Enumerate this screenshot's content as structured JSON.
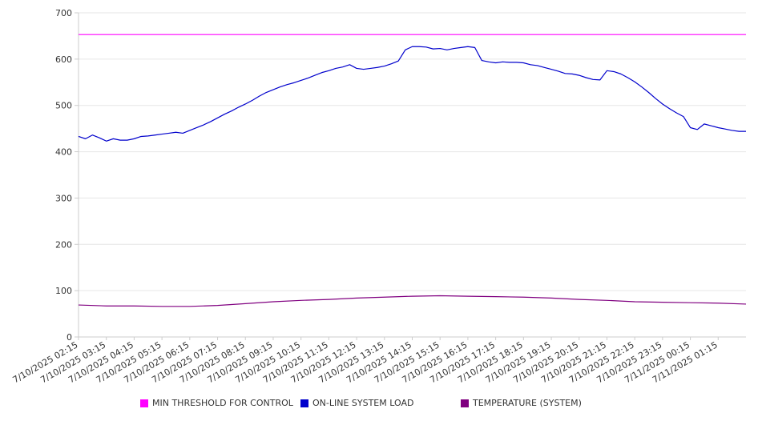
{
  "chart_data": {
    "type": "line",
    "title": "",
    "xlabel": "",
    "ylabel": "",
    "ylim": [
      0,
      700
    ],
    "yticks": [
      0,
      100,
      200,
      300,
      400,
      500,
      600,
      700
    ],
    "grid": "horizontal",
    "legend_position": "bottom",
    "x_tick_labels": [
      "7/10/2025 02:15",
      "7/10/2025 03:15",
      "7/10/2025 04:15",
      "7/10/2025 05:15",
      "7/10/2025 06:15",
      "7/10/2025 07:15",
      "7/10/2025 08:15",
      "7/10/2025 09:15",
      "7/10/2025 10:15",
      "7/10/2025 11:15",
      "7/10/2025 12:15",
      "7/10/2025 13:15",
      "7/10/2025 14:15",
      "7/10/2025 15:15",
      "7/10/2025 16:15",
      "7/10/2025 17:15",
      "7/10/2025 18:15",
      "7/10/2025 19:15",
      "7/10/2025 20:15",
      "7/10/2025 21:15",
      "7/10/2025 22:15",
      "7/10/2025 23:15",
      "7/11/2025 00:15",
      "7/11/2025 01:15"
    ],
    "x_range": [
      "7/10/2025 02:15",
      "7/11/2025 02:15"
    ],
    "series": [
      {
        "name": "MIN THRESHOLD FOR CONTROL",
        "color": "#ff00ff",
        "x": [
          "7/10/2025 02:15",
          "7/11/2025 02:15"
        ],
        "values": [
          653,
          653
        ]
      },
      {
        "name": "ON-LINE SYSTEM LOAD",
        "color": "#0000cc",
        "x": [
          "7/10/2025 02:15",
          "7/10/2025 02:30",
          "7/10/2025 02:45",
          "7/10/2025 03:00",
          "7/10/2025 03:15",
          "7/10/2025 03:30",
          "7/10/2025 03:45",
          "7/10/2025 04:00",
          "7/10/2025 04:15",
          "7/10/2025 04:30",
          "7/10/2025 04:45",
          "7/10/2025 05:00",
          "7/10/2025 05:15",
          "7/10/2025 05:30",
          "7/10/2025 05:45",
          "7/10/2025 06:00",
          "7/10/2025 06:15",
          "7/10/2025 06:30",
          "7/10/2025 06:45",
          "7/10/2025 07:00",
          "7/10/2025 07:15",
          "7/10/2025 07:30",
          "7/10/2025 07:45",
          "7/10/2025 08:00",
          "7/10/2025 08:15",
          "7/10/2025 08:30",
          "7/10/2025 08:45",
          "7/10/2025 09:00",
          "7/10/2025 09:15",
          "7/10/2025 09:30",
          "7/10/2025 09:45",
          "7/10/2025 10:00",
          "7/10/2025 10:15",
          "7/10/2025 10:30",
          "7/10/2025 10:45",
          "7/10/2025 11:00",
          "7/10/2025 11:15",
          "7/10/2025 11:30",
          "7/10/2025 11:45",
          "7/10/2025 12:00",
          "7/10/2025 12:15",
          "7/10/2025 12:30",
          "7/10/2025 12:45",
          "7/10/2025 13:00",
          "7/10/2025 13:15",
          "7/10/2025 13:30",
          "7/10/2025 13:45",
          "7/10/2025 14:00",
          "7/10/2025 14:15",
          "7/10/2025 14:30",
          "7/10/2025 14:45",
          "7/10/2025 15:00",
          "7/10/2025 15:15",
          "7/10/2025 15:30",
          "7/10/2025 15:45",
          "7/10/2025 16:00",
          "7/10/2025 16:15",
          "7/10/2025 16:30",
          "7/10/2025 16:45",
          "7/10/2025 17:00",
          "7/10/2025 17:15",
          "7/10/2025 17:30",
          "7/10/2025 17:45",
          "7/10/2025 18:00",
          "7/10/2025 18:15",
          "7/10/2025 18:30",
          "7/10/2025 18:45",
          "7/10/2025 19:00",
          "7/10/2025 19:15",
          "7/10/2025 19:30",
          "7/10/2025 19:45",
          "7/10/2025 20:00",
          "7/10/2025 20:15",
          "7/10/2025 20:30",
          "7/10/2025 20:45",
          "7/10/2025 21:00",
          "7/10/2025 21:15",
          "7/10/2025 21:30",
          "7/10/2025 21:45",
          "7/10/2025 22:00",
          "7/10/2025 22:15",
          "7/10/2025 22:30",
          "7/10/2025 22:45",
          "7/10/2025 23:00",
          "7/10/2025 23:15",
          "7/10/2025 23:30",
          "7/10/2025 23:45",
          "7/11/2025 00:00",
          "7/11/2025 00:15",
          "7/11/2025 00:30",
          "7/11/2025 00:45",
          "7/11/2025 01:00",
          "7/11/2025 01:15",
          "7/11/2025 01:30",
          "7/11/2025 01:45",
          "7/11/2025 02:00",
          "7/11/2025 02:15"
        ],
        "values": [
          433,
          428,
          436,
          430,
          423,
          428,
          425,
          425,
          428,
          433,
          434,
          436,
          438,
          440,
          442,
          440,
          446,
          452,
          458,
          465,
          473,
          481,
          488,
          496,
          503,
          511,
          520,
          528,
          534,
          540,
          545,
          549,
          554,
          559,
          565,
          571,
          575,
          580,
          583,
          588,
          580,
          578,
          580,
          582,
          585,
          590,
          596,
          620,
          627,
          627,
          626,
          622,
          623,
          620,
          623,
          625,
          627,
          625,
          597,
          594,
          592,
          594,
          593,
          593,
          592,
          588,
          586,
          582,
          578,
          574,
          569,
          568,
          565,
          560,
          556,
          555,
          575,
          573,
          568,
          560,
          551,
          540,
          528,
          515,
          503,
          493,
          484,
          476,
          452,
          448,
          460,
          456,
          452,
          449,
          446,
          444,
          444
        ]
      },
      {
        "name": "TEMPERATURE (SYSTEM)",
        "color": "#800080",
        "x": [
          "7/10/2025 02:15",
          "7/10/2025 03:15",
          "7/10/2025 04:15",
          "7/10/2025 05:15",
          "7/10/2025 06:15",
          "7/10/2025 07:15",
          "7/10/2025 08:15",
          "7/10/2025 09:15",
          "7/10/2025 10:15",
          "7/10/2025 11:15",
          "7/10/2025 12:15",
          "7/10/2025 13:15",
          "7/10/2025 14:15",
          "7/10/2025 15:15",
          "7/10/2025 16:15",
          "7/10/2025 17:15",
          "7/10/2025 18:15",
          "7/10/2025 19:15",
          "7/10/2025 20:15",
          "7/10/2025 21:15",
          "7/10/2025 22:15",
          "7/10/2025 23:15",
          "7/11/2025 00:15",
          "7/11/2025 01:15",
          "7/11/2025 02:15"
        ],
        "values": [
          69,
          67,
          67,
          66,
          66,
          68,
          72,
          76,
          79,
          81,
          84,
          86,
          88,
          89,
          88,
          87,
          86,
          84,
          81,
          79,
          76,
          75,
          74,
          73,
          71
        ]
      }
    ]
  }
}
